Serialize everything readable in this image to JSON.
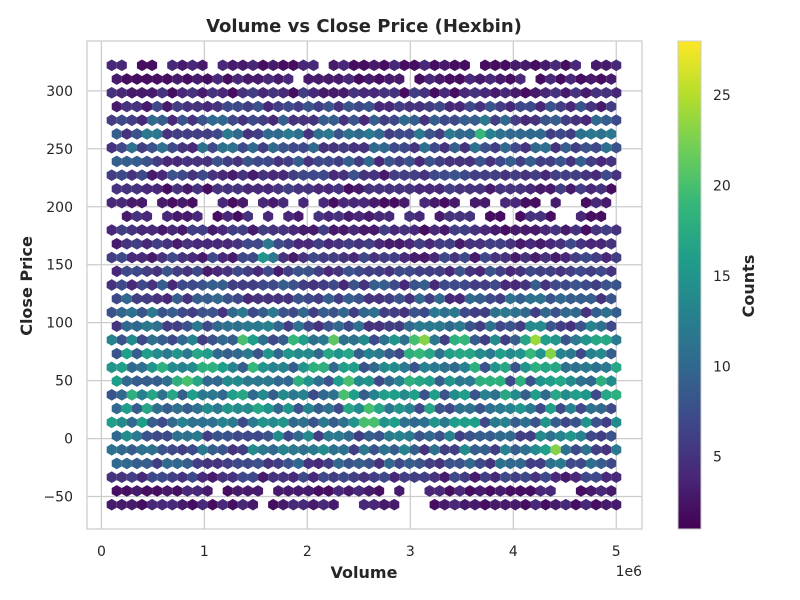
{
  "chart_data": {
    "type": "heatmap",
    "subtype": "hexbin",
    "title": "Volume vs Close Price (Hexbin)",
    "xlabel": "Volume",
    "ylabel": "Close Price",
    "x_offset_text": "1e6",
    "xlim": [
      -0.14,
      5.25
    ],
    "ylim": [
      -78,
      343
    ],
    "x_ticks": [
      0,
      1,
      2,
      3,
      4,
      5
    ],
    "x_tick_labels": [
      "0",
      "1",
      "2",
      "3",
      "4",
      "5"
    ],
    "y_ticks": [
      -50,
      0,
      50,
      100,
      150,
      200,
      250,
      300
    ],
    "y_tick_labels": [
      "−50",
      "0",
      "50",
      "100",
      "150",
      "200",
      "250",
      "300"
    ],
    "grid": true,
    "colormap": "viridis",
    "colorbar": {
      "label": "Counts",
      "range": [
        1,
        28
      ],
      "ticks": [
        5,
        10,
        15,
        20,
        25
      ],
      "tick_labels": [
        "5",
        "10",
        "15",
        "20",
        "25"
      ]
    },
    "bins": {
      "x_range": [
        0.1,
        5.0
      ],
      "y_range": [
        -57,
        322
      ],
      "columns": 51,
      "rows": 33,
      "mean_by_price_band": [
        {
          "price": [
            -57,
            -30
          ],
          "mean_count": 3
        },
        {
          "price": [
            -30,
            0
          ],
          "mean_count": 9
        },
        {
          "price": [
            0,
            45
          ],
          "mean_count": 12
        },
        {
          "price": [
            45,
            80
          ],
          "mean_count": 13
        },
        {
          "price": [
            80,
            100
          ],
          "mean_count": 10
        },
        {
          "price": [
            100,
            180
          ],
          "mean_count": 6
        },
        {
          "price": [
            180,
            230
          ],
          "mean_count": 3
        },
        {
          "price": [
            230,
            290
          ],
          "mean_count": 9
        },
        {
          "price": [
            290,
            322
          ],
          "mean_count": 3
        }
      ],
      "peaks": [
        {
          "volume": 3.1,
          "price": 83,
          "count": 28
        },
        {
          "volume": 4.2,
          "price": 83,
          "count": 26
        },
        {
          "volume": 2.6,
          "price": 17,
          "count": 25
        },
        {
          "volume": 3.7,
          "price": 266,
          "count": 22
        },
        {
          "volume": 4.35,
          "price": 75,
          "count": 24
        },
        {
          "volume": 4.4,
          "price": -8,
          "count": 24
        },
        {
          "volume": 2.4,
          "price": 42,
          "count": 22
        },
        {
          "volume": 1.9,
          "price": 83,
          "count": 21
        },
        {
          "volume": 3.5,
          "price": 83,
          "count": 21
        },
        {
          "volume": 4.85,
          "price": 83,
          "count": 21
        },
        {
          "volume": 0.85,
          "price": 50,
          "count": 20
        },
        {
          "volume": 1.6,
          "price": 160,
          "count": 18
        },
        {
          "volume": 1.4,
          "price": 83,
          "count": 21
        },
        {
          "volume": 2.25,
          "price": 83,
          "count": 22
        }
      ]
    }
  }
}
